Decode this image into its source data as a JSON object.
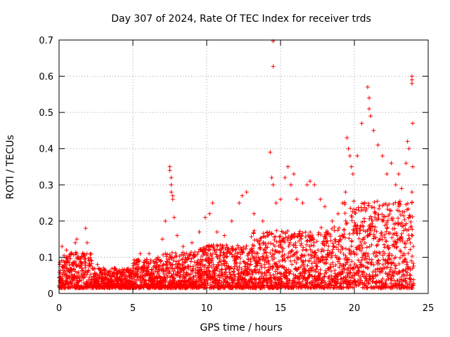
{
  "chart_data": {
    "type": "scatter",
    "title": "Day 307 of 2024, Rate Of TEC Index for receiver trds",
    "xlabel": "GPS time / hours",
    "ylabel": "ROTI / TECUs",
    "xlim": [
      0,
      25
    ],
    "ylim": [
      0,
      0.7
    ],
    "xticks": [
      0,
      5,
      10,
      15,
      20,
      25
    ],
    "yticks": [
      0,
      0.1,
      0.2,
      0.3,
      0.4,
      0.5,
      0.6,
      0.7
    ],
    "xtick_labels": [
      "0",
      "5",
      "10",
      "15",
      "20",
      "25"
    ],
    "ytick_labels": [
      "0",
      "0.1",
      "0.2",
      "0.3",
      "0.4",
      "0.5",
      "0.6",
      "0.7"
    ],
    "grid": true,
    "marker": "+",
    "color": "#ff0000",
    "series": [
      {
        "name": "ROTI",
        "points": [
          [
            0.2,
            0.13
          ],
          [
            0.5,
            0.12
          ],
          [
            0.8,
            0.11
          ],
          [
            1.1,
            0.14
          ],
          [
            1.2,
            0.15
          ],
          [
            1.8,
            0.18
          ],
          [
            1.9,
            0.14
          ],
          [
            2.2,
            0.09
          ],
          [
            2.6,
            0.08
          ],
          [
            3.0,
            0.07
          ],
          [
            3.5,
            0.06
          ],
          [
            4.1,
            0.06
          ],
          [
            4.6,
            0.06
          ],
          [
            5.0,
            0.07
          ],
          [
            5.3,
            0.08
          ],
          [
            5.5,
            0.11
          ],
          [
            6.1,
            0.11
          ],
          [
            6.7,
            0.1
          ],
          [
            7.0,
            0.15
          ],
          [
            7.2,
            0.2
          ],
          [
            7.5,
            0.35
          ],
          [
            7.5,
            0.34
          ],
          [
            7.6,
            0.32
          ],
          [
            7.6,
            0.3
          ],
          [
            7.6,
            0.28
          ],
          [
            7.7,
            0.27
          ],
          [
            7.7,
            0.26
          ],
          [
            7.8,
            0.21
          ],
          [
            8.0,
            0.16
          ],
          [
            8.4,
            0.13
          ],
          [
            9.0,
            0.14
          ],
          [
            9.5,
            0.17
          ],
          [
            9.9,
            0.21
          ],
          [
            10.2,
            0.22
          ],
          [
            10.4,
            0.25
          ],
          [
            10.7,
            0.17
          ],
          [
            11.2,
            0.16
          ],
          [
            11.7,
            0.2
          ],
          [
            12.2,
            0.25
          ],
          [
            12.4,
            0.27
          ],
          [
            12.7,
            0.28
          ],
          [
            13.2,
            0.22
          ],
          [
            13.8,
            0.2
          ],
          [
            14.3,
            0.39
          ],
          [
            14.5,
            0.697
          ],
          [
            14.5,
            0.627
          ],
          [
            14.4,
            0.32
          ],
          [
            14.5,
            0.3
          ],
          [
            14.7,
            0.25
          ],
          [
            15.0,
            0.26
          ],
          [
            15.3,
            0.32
          ],
          [
            15.5,
            0.35
          ],
          [
            15.7,
            0.3
          ],
          [
            15.9,
            0.33
          ],
          [
            16.1,
            0.26
          ],
          [
            16.5,
            0.25
          ],
          [
            16.8,
            0.3
          ],
          [
            17.0,
            0.31
          ],
          [
            17.3,
            0.3
          ],
          [
            17.7,
            0.26
          ],
          [
            18.0,
            0.24
          ],
          [
            18.5,
            0.2
          ],
          [
            18.9,
            0.22
          ],
          [
            19.2,
            0.25
          ],
          [
            19.4,
            0.28
          ],
          [
            19.5,
            0.43
          ],
          [
            19.6,
            0.4
          ],
          [
            19.7,
            0.38
          ],
          [
            19.8,
            0.35
          ],
          [
            19.9,
            0.33
          ],
          [
            20.2,
            0.38
          ],
          [
            20.5,
            0.47
          ],
          [
            20.9,
            0.57
          ],
          [
            21.0,
            0.54
          ],
          [
            21.0,
            0.51
          ],
          [
            21.1,
            0.49
          ],
          [
            21.3,
            0.45
          ],
          [
            21.6,
            0.41
          ],
          [
            21.9,
            0.38
          ],
          [
            22.2,
            0.33
          ],
          [
            22.5,
            0.36
          ],
          [
            22.8,
            0.3
          ],
          [
            23.0,
            0.33
          ],
          [
            23.2,
            0.29
          ],
          [
            23.5,
            0.36
          ],
          [
            23.6,
            0.42
          ],
          [
            23.7,
            0.4
          ],
          [
            23.9,
            0.6
          ],
          [
            23.9,
            0.59
          ],
          [
            23.9,
            0.58
          ],
          [
            23.95,
            0.47
          ],
          [
            23.95,
            0.35
          ],
          [
            23.9,
            0.28
          ]
        ]
      }
    ]
  }
}
